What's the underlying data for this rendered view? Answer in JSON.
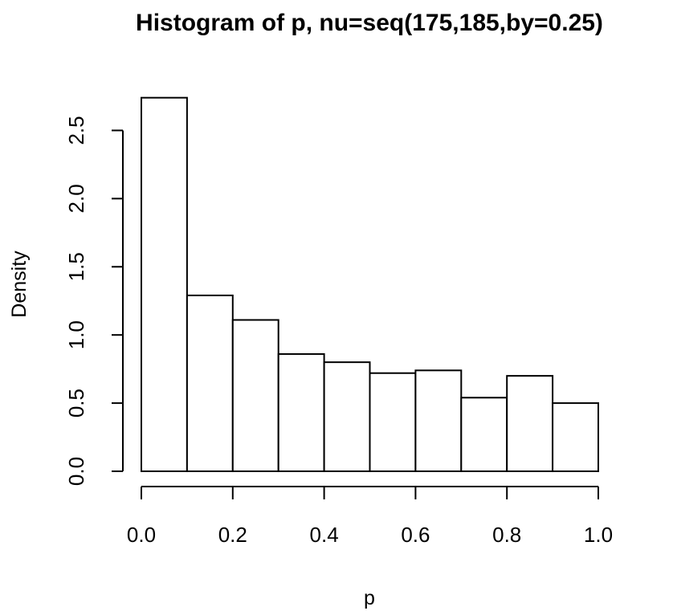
{
  "chart_data": {
    "type": "bar",
    "title": "Histogram of p, nu=seq(175,185,by=0.25)",
    "xlabel": "p",
    "ylabel": "Density",
    "xlim": [
      0,
      1
    ],
    "ylim": [
      0,
      2.75
    ],
    "bin_edges": [
      0.0,
      0.1,
      0.2,
      0.3,
      0.4,
      0.5,
      0.6,
      0.7,
      0.8,
      0.9,
      1.0
    ],
    "values": [
      2.74,
      1.29,
      1.11,
      0.86,
      0.8,
      0.72,
      0.74,
      0.54,
      0.7,
      0.5
    ],
    "x_ticks": [
      0.0,
      0.2,
      0.4,
      0.6,
      0.8,
      1.0
    ],
    "x_tick_labels": [
      "0.0",
      "0.2",
      "0.4",
      "0.6",
      "0.8",
      "1.0"
    ],
    "y_ticks": [
      0.0,
      0.5,
      1.0,
      1.5,
      2.0,
      2.5
    ],
    "y_tick_labels": [
      "0.0",
      "0.5",
      "1.0",
      "1.5",
      "2.0",
      "2.5"
    ],
    "grid": false,
    "legend": "none"
  }
}
